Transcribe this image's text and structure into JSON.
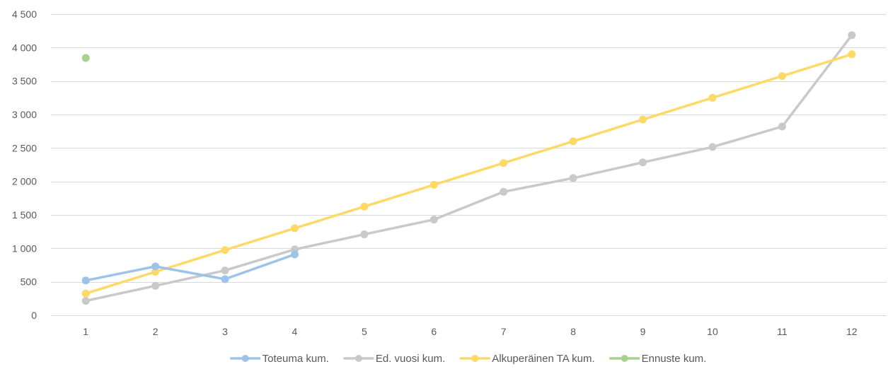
{
  "chart_data": {
    "type": "line",
    "title": "",
    "xlabel": "",
    "ylabel": "",
    "categories": [
      "1",
      "2",
      "3",
      "4",
      "5",
      "6",
      "7",
      "8",
      "9",
      "10",
      "11",
      "12"
    ],
    "ylim": [
      0,
      4500
    ],
    "yticks": [
      0,
      500,
      1000,
      1500,
      2000,
      2500,
      3000,
      3500,
      4000,
      4500
    ],
    "ytick_labels": [
      "0",
      "500",
      "1 000",
      "1 500",
      "2 000",
      "2 500",
      "3 000",
      "3 500",
      "4 000",
      "4 500"
    ],
    "grid": "horizontal",
    "legend_position": "bottom",
    "series": [
      {
        "name": "Toteuma kum.",
        "color": "#9DC3E6",
        "values": [
          520,
          730,
          540,
          910,
          null,
          null,
          null,
          null,
          null,
          null,
          null,
          null
        ]
      },
      {
        "name": "Ed. vuosi kum.",
        "color": "#C9C9C9",
        "values": [
          215,
          440,
          670,
          985,
          1210,
          1430,
          1845,
          2050,
          2285,
          2515,
          2820,
          4185
        ]
      },
      {
        "name": "Alkuperäinen TA kum.",
        "color": "#FFD966",
        "values": [
          325,
          650,
          975,
          1300,
          1625,
          1950,
          2275,
          2600,
          2925,
          3250,
          3575,
          3900
        ]
      },
      {
        "name": "Ennuste kum.",
        "color": "#A9D18E",
        "values": [
          3845,
          null,
          null,
          null,
          null,
          null,
          null,
          null,
          null,
          null,
          null,
          null
        ]
      }
    ]
  }
}
